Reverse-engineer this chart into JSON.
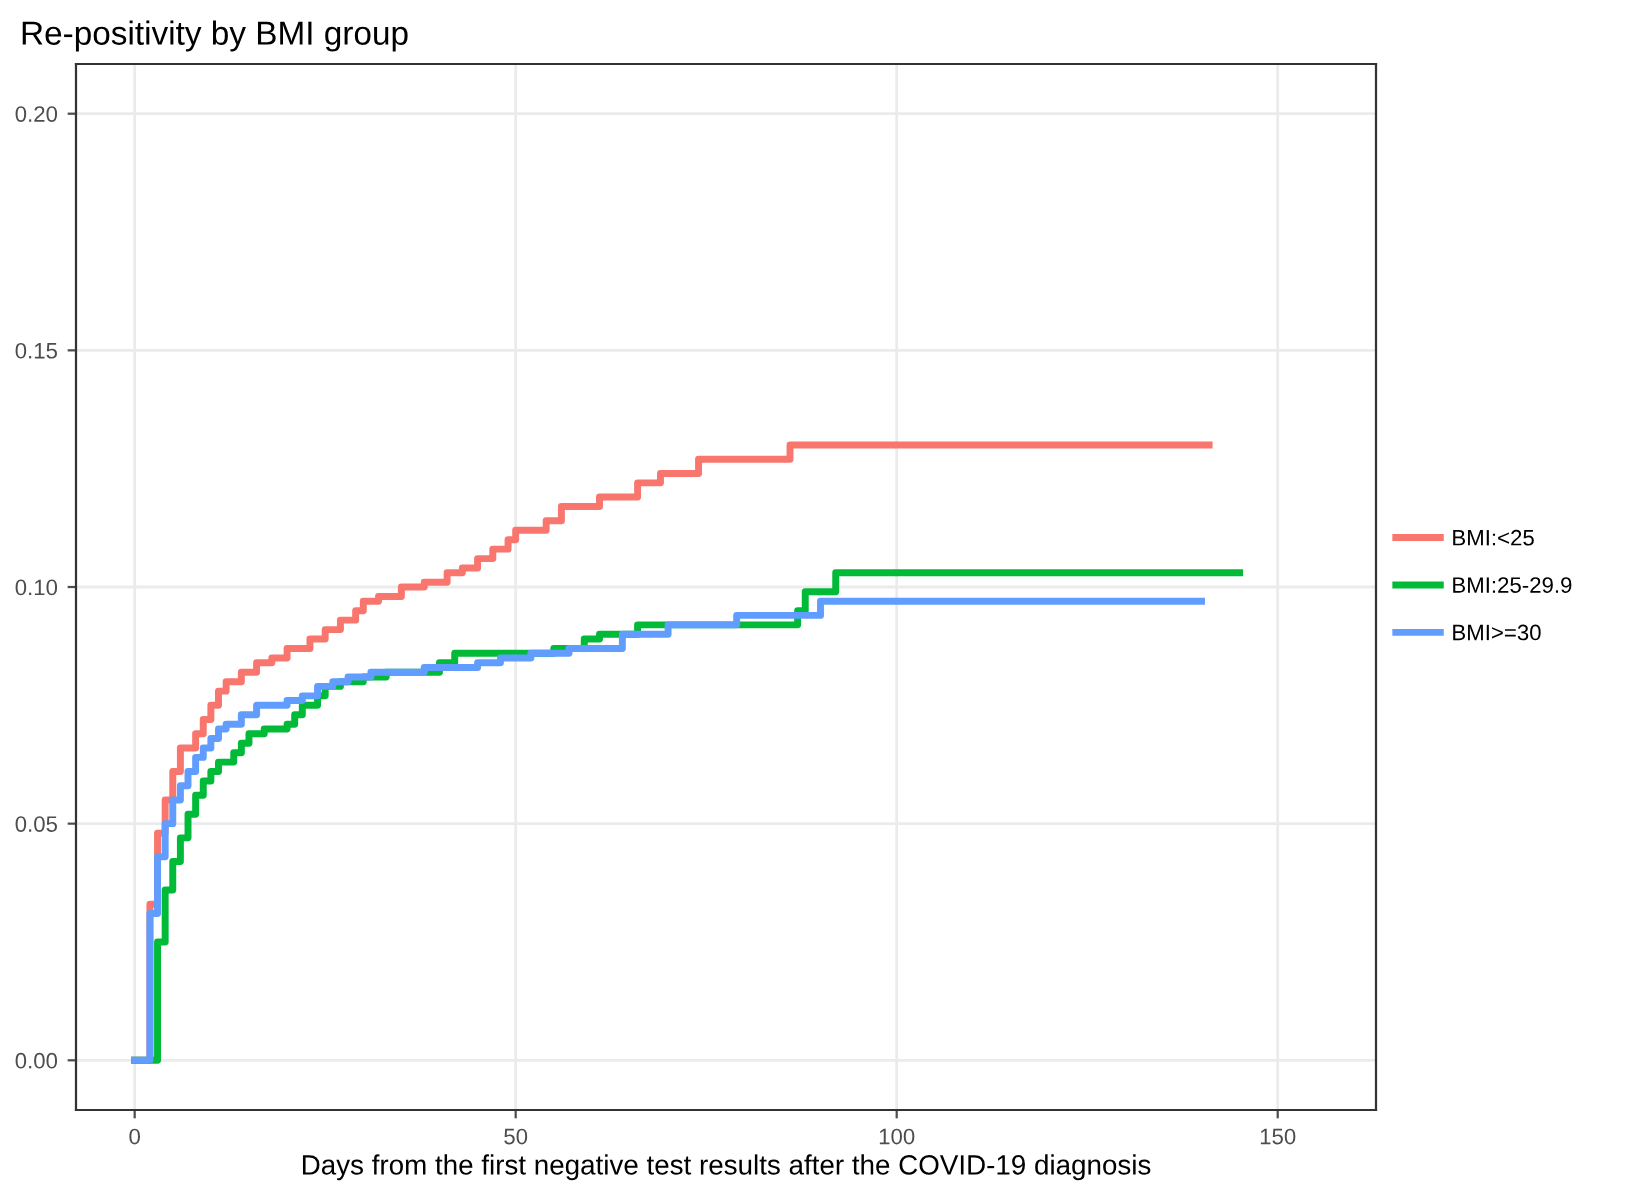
{
  "chart_data": {
    "type": "step",
    "title": "Re-positivity by BMI group",
    "xlabel": "Days from the first negative test results after the COVID-19 diagnosis",
    "xlim": [
      -7.7,
      162.9
    ],
    "xticks": [
      0,
      50,
      100,
      150
    ],
    "ylim": [
      -0.0105,
      0.2105
    ],
    "yticks": [
      {
        "value": 0,
        "label": "0.00"
      },
      {
        "value": 0.05,
        "label": "0.05"
      },
      {
        "value": 0.1,
        "label": "0.10"
      },
      {
        "value": 0.15,
        "label": "0.15"
      },
      {
        "value": 0.2,
        "label": "0.20"
      }
    ],
    "grid": true,
    "legend": "right",
    "line_style": "solid",
    "marker": "none",
    "series": [
      {
        "name": "BMI:<25",
        "color": "#f8766d",
        "x": [
          0,
          2,
          3,
          4,
          5,
          6,
          8,
          9,
          10,
          11,
          12,
          14,
          16,
          18,
          20,
          23,
          25,
          27,
          29,
          30,
          32,
          35,
          38,
          41,
          43,
          45,
          47,
          49,
          50,
          54,
          56,
          61,
          66,
          69,
          74,
          86,
          141
        ],
        "values": [
          0,
          0.033,
          0.048,
          0.055,
          0.061,
          0.066,
          0.069,
          0.072,
          0.075,
          0.078,
          0.08,
          0.082,
          0.084,
          0.085,
          0.087,
          0.089,
          0.091,
          0.093,
          0.095,
          0.097,
          0.098,
          0.1,
          0.101,
          0.103,
          0.104,
          0.106,
          0.108,
          0.11,
          0.112,
          0.114,
          0.117,
          0.119,
          0.122,
          0.124,
          0.127,
          0.13,
          0.13
        ]
      },
      {
        "name": "BMI:25-29.9",
        "color": "#00ba38",
        "x": [
          0,
          3,
          4,
          5,
          6,
          7,
          8,
          9,
          10,
          11,
          13,
          14,
          15,
          17,
          20,
          21,
          22,
          24,
          25,
          27,
          30,
          33,
          40,
          42,
          55,
          59,
          61,
          66,
          87,
          88,
          92,
          145
        ],
        "values": [
          0,
          0.025,
          0.036,
          0.042,
          0.047,
          0.052,
          0.056,
          0.059,
          0.061,
          0.063,
          0.065,
          0.067,
          0.069,
          0.07,
          0.071,
          0.073,
          0.075,
          0.077,
          0.079,
          0.08,
          0.081,
          0.082,
          0.084,
          0.086,
          0.087,
          0.089,
          0.09,
          0.092,
          0.095,
          0.099,
          0.103,
          0.103
        ]
      },
      {
        "name": "BMI>=30",
        "color": "#619cff",
        "x": [
          0,
          2,
          3,
          4,
          5,
          6,
          7,
          8,
          9,
          10,
          11,
          12,
          14,
          16,
          20,
          22,
          24,
          26,
          28,
          31,
          38,
          45,
          48,
          52,
          57,
          64,
          70,
          79,
          90,
          140
        ],
        "values": [
          0,
          0.031,
          0.043,
          0.05,
          0.055,
          0.058,
          0.061,
          0.064,
          0.066,
          0.068,
          0.07,
          0.071,
          0.073,
          0.075,
          0.076,
          0.077,
          0.079,
          0.08,
          0.081,
          0.082,
          0.083,
          0.084,
          0.085,
          0.086,
          0.087,
          0.09,
          0.092,
          0.094,
          0.097,
          0.097
        ]
      }
    ]
  }
}
